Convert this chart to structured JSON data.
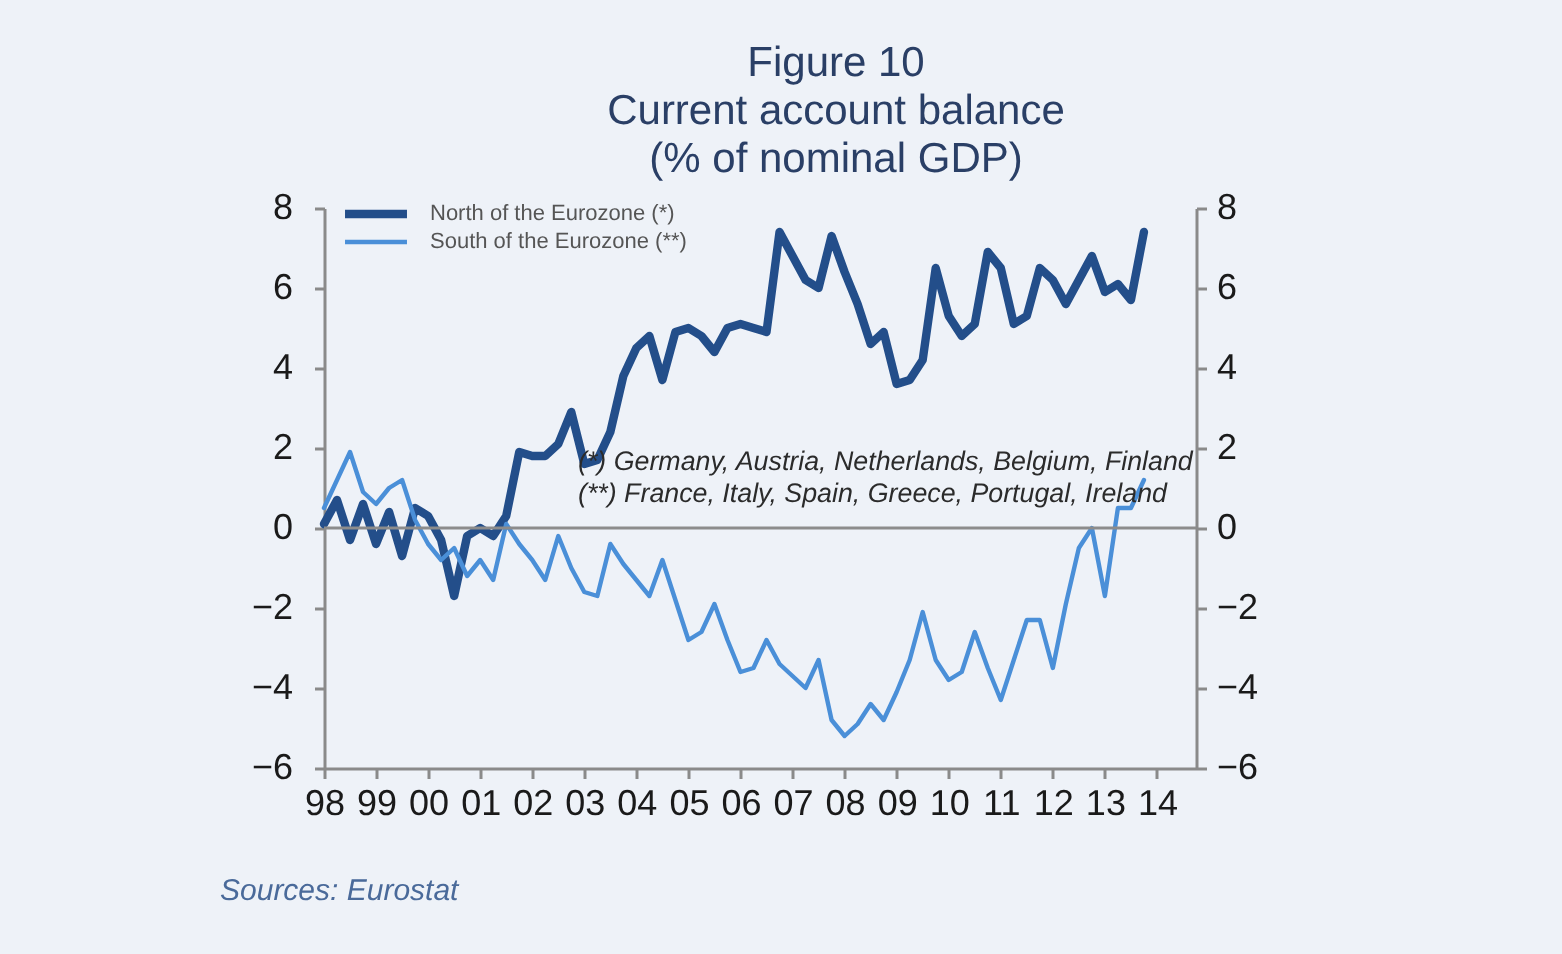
{
  "chart_data": {
    "type": "line",
    "title": "Figure 10\nCurrent account balance\n(% of nominal GDP)",
    "annotations": [
      "(*) Germany, Austria, Netherlands, Belgium, Finland",
      "(**) France, Italy, Spain, Greece, Portugal, Ireland",
      "Sources: Eurostat"
    ],
    "x": [
      1998,
      1998.25,
      1998.5,
      1998.75,
      1999,
      1999.25,
      1999.5,
      1999.75,
      2000,
      2000.25,
      2000.5,
      2000.75,
      2001,
      2001.25,
      2001.5,
      2001.75,
      2002,
      2002.25,
      2002.5,
      2002.75,
      2003,
      2003.25,
      2003.5,
      2003.75,
      2004,
      2004.25,
      2004.5,
      2004.75,
      2005,
      2005.25,
      2005.5,
      2005.75,
      2006,
      2006.25,
      2006.5,
      2006.75,
      2007,
      2007.25,
      2007.5,
      2007.75,
      2008,
      2008.25,
      2008.5,
      2008.75,
      2009,
      2009.25,
      2009.5,
      2009.75,
      2010,
      2010.25,
      2010.5,
      2010.75,
      2011,
      2011.25,
      2011.5,
      2011.75,
      2012,
      2012.25,
      2012.5,
      2012.75,
      2013,
      2013.25,
      2013.5,
      2013.75
    ],
    "series": [
      {
        "name": "North of the Eurozone (*)",
        "color": "#234e8a",
        "values": [
          0.1,
          0.7,
          -0.3,
          0.6,
          -0.4,
          0.4,
          -0.7,
          0.5,
          0.3,
          -0.3,
          -1.7,
          -0.2,
          0.0,
          -0.2,
          0.3,
          1.9,
          1.8,
          1.8,
          2.1,
          2.9,
          1.6,
          1.7,
          2.4,
          3.8,
          4.5,
          4.8,
          3.7,
          4.9,
          5.0,
          4.8,
          4.4,
          5.0,
          5.1,
          5.0,
          4.9,
          7.4,
          6.8,
          6.2,
          6.0,
          7.3,
          6.4,
          5.6,
          4.6,
          4.9,
          3.6,
          3.7,
          4.2,
          6.5,
          5.3,
          4.8,
          5.1,
          6.9,
          6.5,
          5.1,
          5.3,
          6.5,
          6.2,
          5.6,
          6.2,
          6.8,
          5.9,
          6.1,
          5.7,
          7.4
        ]
      },
      {
        "name": "South of the Eurozone (**)",
        "color": "#4a8fd8",
        "values": [
          0.5,
          1.2,
          1.9,
          0.9,
          0.6,
          1.0,
          1.2,
          0.2,
          -0.4,
          -0.8,
          -0.5,
          -1.2,
          -0.8,
          -1.3,
          0.1,
          -0.4,
          -0.8,
          -1.3,
          -0.2,
          -1.0,
          -1.6,
          -1.7,
          -0.4,
          -0.9,
          -1.3,
          -1.7,
          -0.8,
          -1.8,
          -2.8,
          -2.6,
          -1.9,
          -2.8,
          -3.6,
          -3.5,
          -2.8,
          -3.4,
          -3.7,
          -4.0,
          -3.3,
          -4.8,
          -5.2,
          -4.9,
          -4.4,
          -4.8,
          -4.1,
          -3.3,
          -2.1,
          -3.3,
          -3.8,
          -3.6,
          -2.6,
          -3.5,
          -4.3,
          -3.3,
          -2.3,
          -2.3,
          -3.5,
          -1.9,
          -0.5,
          0.0,
          -1.7,
          0.5,
          0.5,
          1.2
        ]
      }
    ],
    "xlim": [
      1998,
      2014.75
    ],
    "xticks": [
      {
        "value": 1998,
        "label": "98"
      },
      {
        "value": 1999,
        "label": "99"
      },
      {
        "value": 2000,
        "label": "00"
      },
      {
        "value": 2001,
        "label": "01"
      },
      {
        "value": 2002,
        "label": "02"
      },
      {
        "value": 2003,
        "label": "03"
      },
      {
        "value": 2004,
        "label": "04"
      },
      {
        "value": 2005,
        "label": "05"
      },
      {
        "value": 2006,
        "label": "06"
      },
      {
        "value": 2007,
        "label": "07"
      },
      {
        "value": 2008,
        "label": "08"
      },
      {
        "value": 2009,
        "label": "09"
      },
      {
        "value": 2010,
        "label": "10"
      },
      {
        "value": 2011,
        "label": "11"
      },
      {
        "value": 2012,
        "label": "12"
      },
      {
        "value": 2013,
        "label": "13"
      },
      {
        "value": 2014,
        "label": "14"
      }
    ],
    "ylim": [
      -6,
      8
    ],
    "yticks": [
      -6,
      -4,
      -2,
      0,
      2,
      4,
      6,
      8
    ],
    "y2lim": [
      -6,
      8
    ],
    "y2ticks": [
      -6,
      -4,
      -2,
      0,
      2,
      4,
      6,
      8
    ],
    "ref_lines": [
      {
        "axis": "y",
        "value": 0,
        "color": "#8c8c8c"
      }
    ],
    "legend": "top left"
  }
}
